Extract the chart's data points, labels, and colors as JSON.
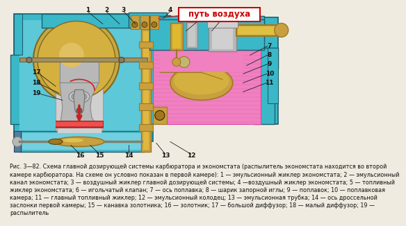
{
  "title_box_text": "путь воздуха",
  "title_box_color": "#cc0000",
  "title_box_bg": "#ffffff",
  "caption_text": "Рис. 3—82. Схема главной дозирующей системы карбюратора и экономстата (распылитель экономстата находится во второй\nкамере карбюратора. На схеме он условно показан в первой камере): 1 — эмульсионный жиклер экономстата; 2 — эмульсионный\nканал экономстата; 3 — воздушный жиклер главной дозирующей системы; 4 —воздушный жиклер экономстата; 5 — топливный\nжиклер экономстата; 6 — игольчатый клапан; 7 — ось поплавка; 8 — шарик запорной иглы; 9 — поплавок; 10 — поплавковая\nкамера; 11 — главный топливный жиклер; 12 — эмульсионный колодец; 13 — эмульсионная трубка; 14 — ось дроссельной\nзаслонки первой камеры; 15 — канавка золотника; 16 — золотник; 17 — большой диффузор; 18 — малый диффузор; 19 —\nраспылитель",
  "bg_color": "#f0ebe0",
  "body_teal": "#3ab8c8",
  "body_teal_dark": "#2090a0",
  "body_teal_edge": "#1a6070",
  "gold": "#c8a040",
  "gold_dark": "#a07820",
  "silver": "#b8b8b8",
  "silver_dark": "#888888",
  "pink": "#e040a0",
  "pink_light": "#f080c0",
  "red": "#cc2020",
  "gray_light": "#d0d0d0",
  "gray_mid": "#a0a0a0",
  "white": "#ffffff",
  "caption_fontsize": 5.8,
  "caption_color": "#111111",
  "label_fontsize": 6.5,
  "label_color": "#111111"
}
